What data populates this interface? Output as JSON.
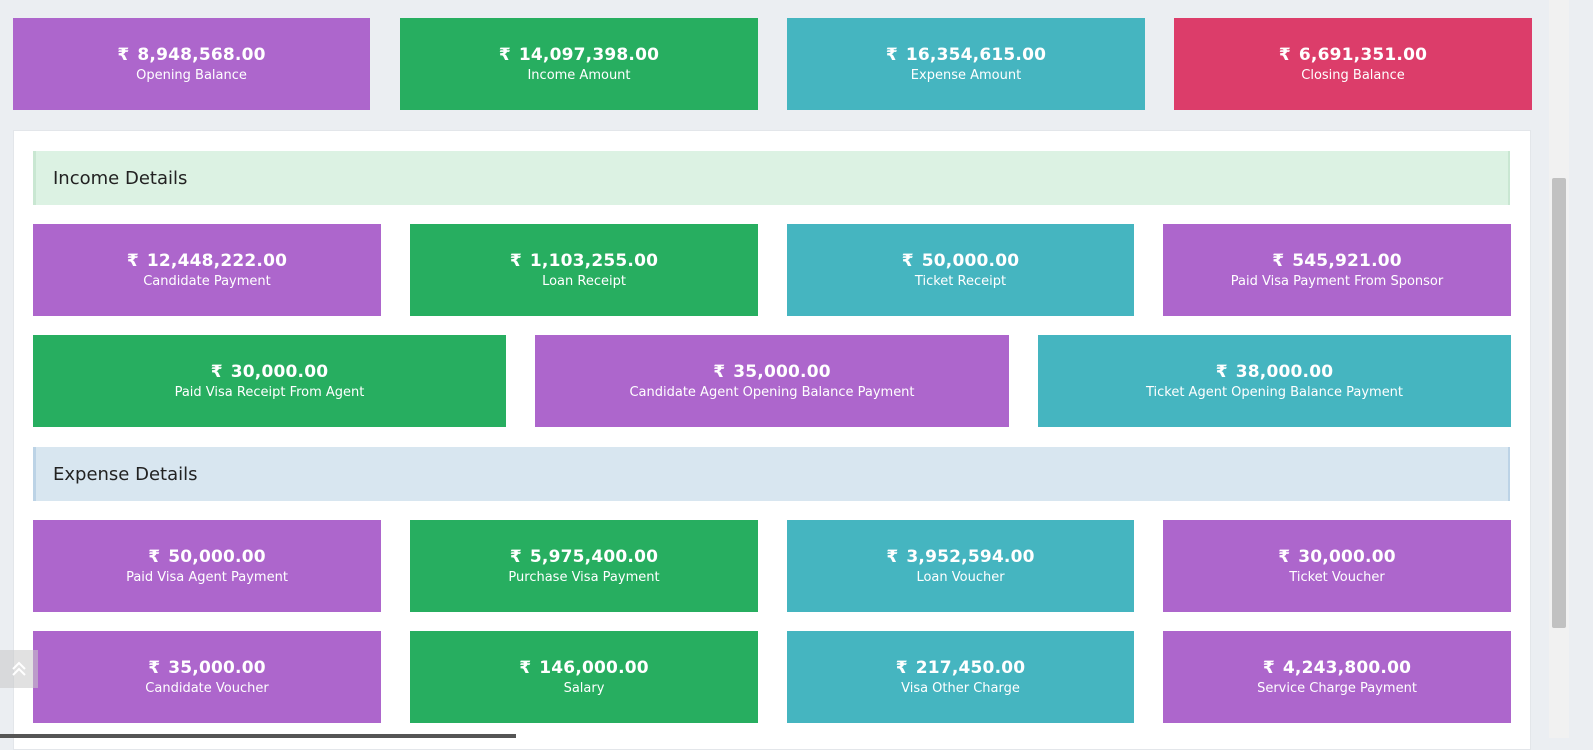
{
  "currency_symbol": "₹",
  "summary": [
    {
      "amount": "8,948,568.00",
      "label": "Opening Balance",
      "color": "#ad66cc"
    },
    {
      "amount": "14,097,398.00",
      "label": "Income Amount",
      "color": "#27ae60"
    },
    {
      "amount": "16,354,615.00",
      "label": "Expense Amount",
      "color": "#45b5c0"
    },
    {
      "amount": "6,691,351.00",
      "label": "Closing Balance",
      "color": "#dc3d6a"
    }
  ],
  "income": {
    "title": "Income Details",
    "row1": [
      {
        "amount": "12,448,222.00",
        "label": "Candidate Payment"
      },
      {
        "amount": "1,103,255.00",
        "label": "Loan Receipt"
      },
      {
        "amount": "50,000.00",
        "label": "Ticket Receipt"
      },
      {
        "amount": "545,921.00",
        "label": "Paid Visa Payment From Sponsor"
      }
    ],
    "row2": [
      {
        "amount": "30,000.00",
        "label": "Paid Visa Receipt From Agent"
      },
      {
        "amount": "35,000.00",
        "label": "Candidate Agent Opening Balance Payment"
      },
      {
        "amount": "38,000.00",
        "label": "Ticket Agent Opening Balance Payment"
      }
    ]
  },
  "expense": {
    "title": "Expense Details",
    "row1": [
      {
        "amount": "50,000.00",
        "label": "Paid Visa Agent Payment"
      },
      {
        "amount": "5,975,400.00",
        "label": "Purchase Visa Payment"
      },
      {
        "amount": "3,952,594.00",
        "label": "Loan Voucher"
      },
      {
        "amount": "30,000.00",
        "label": "Ticket Voucher"
      }
    ],
    "row2": [
      {
        "amount": "35,000.00",
        "label": "Candidate Voucher"
      },
      {
        "amount": "146,000.00",
        "label": "Salary"
      },
      {
        "amount": "217,450.00",
        "label": "Visa Other Charge"
      },
      {
        "amount": "4,243,800.00",
        "label": "Service Charge Payment"
      }
    ]
  },
  "icons": {
    "back_to_top": "double-chevron-up-icon"
  }
}
